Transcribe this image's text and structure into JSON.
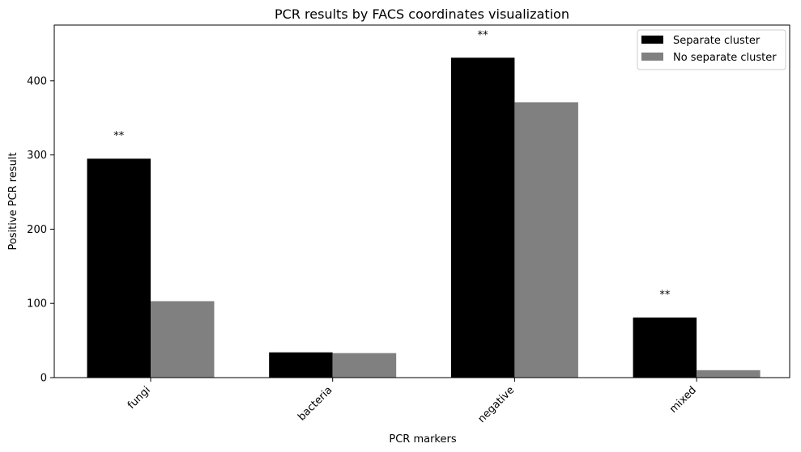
{
  "chart_data": {
    "type": "bar",
    "title": "PCR results by FACS coordinates visualization",
    "xlabel": "PCR markers",
    "ylabel": "Positive PCR result",
    "categories": [
      "fungi",
      "bacteria",
      "negative",
      "mixed"
    ],
    "series": [
      {
        "name": "Separate cluster",
        "values": [
          295,
          34,
          431,
          81
        ],
        "color": "#000000"
      },
      {
        "name": "No separate cluster",
        "values": [
          103,
          33,
          371,
          10
        ],
        "color": "#808080"
      }
    ],
    "annotations": [
      "**",
      "",
      "**",
      "**"
    ],
    "ylim": [
      0,
      475
    ],
    "yticks": [
      0,
      100,
      200,
      300,
      400
    ],
    "legend_position": "top-right",
    "grid": false
  }
}
